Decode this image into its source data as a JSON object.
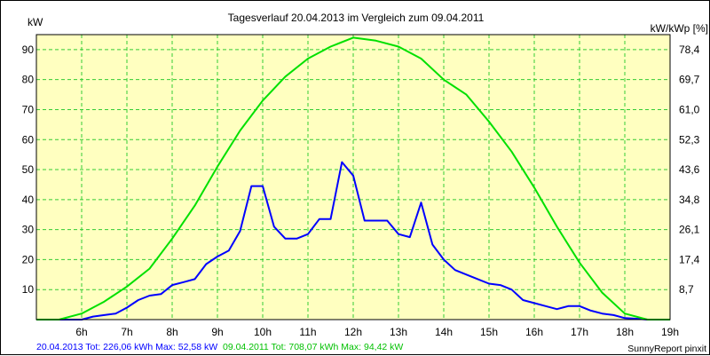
{
  "chart_data": {
    "type": "line",
    "title": "Tagesverlauf 20.04.2013 im Vergleich zum 09.04.2011",
    "ylabel_left": "kW",
    "ylabel_right": "kW/kWp [%]",
    "ylim": [
      0,
      95
    ],
    "xlim": [
      5,
      19
    ],
    "grid": true,
    "background_color": "#ffffc0",
    "grid_color": "#33cc33",
    "y_ticks_left": [
      "10",
      "20",
      "30",
      "40",
      "50",
      "60",
      "70",
      "80",
      "90"
    ],
    "y_ticks_right": [
      "8,7",
      "17,4",
      "26,1",
      "34,8",
      "43,6",
      "52,3",
      "61,0",
      "69,7",
      "78,4"
    ],
    "x_ticks": [
      "6h",
      "7h",
      "8h",
      "9h",
      "10h",
      "11h",
      "12h",
      "13h",
      "14h",
      "15h",
      "16h",
      "17h",
      "18h",
      "19h"
    ],
    "series": [
      {
        "name": "20.04.2013",
        "color": "#0000ff",
        "x": [
          5.0,
          6.0,
          6.25,
          6.5,
          6.75,
          7.0,
          7.25,
          7.5,
          7.75,
          8.0,
          8.25,
          8.5,
          8.75,
          9.0,
          9.25,
          9.5,
          9.75,
          10.0,
          10.25,
          10.5,
          10.75,
          11.0,
          11.25,
          11.5,
          11.75,
          12.0,
          12.25,
          12.5,
          12.75,
          13.0,
          13.25,
          13.5,
          13.75,
          14.0,
          14.25,
          14.5,
          14.75,
          15.0,
          15.25,
          15.5,
          15.75,
          16.0,
          16.25,
          16.5,
          16.75,
          17.0,
          17.25,
          17.5,
          17.75,
          18.0,
          18.25,
          18.5,
          19.0
        ],
        "values": [
          0,
          0,
          1,
          1.5,
          2,
          4,
          6.5,
          8,
          8.5,
          11.5,
          12.5,
          13.5,
          18.5,
          21,
          23,
          29.5,
          44.5,
          44.5,
          31,
          27,
          27,
          28.5,
          33.5,
          33.5,
          52.5,
          48,
          33,
          33,
          33,
          28.5,
          27.5,
          39,
          25,
          20,
          16.5,
          15,
          13.5,
          12,
          11.5,
          10,
          6.5,
          5.5,
          4.5,
          3.5,
          4.5,
          4.5,
          3,
          2,
          1.5,
          0.5,
          0.3,
          0,
          0
        ]
      },
      {
        "name": "09.04.2011",
        "color": "#00e000",
        "x": [
          5.0,
          5.5,
          6.0,
          6.5,
          7.0,
          7.5,
          8.0,
          8.5,
          9.0,
          9.5,
          10.0,
          10.5,
          11.0,
          11.5,
          12.0,
          12.5,
          13.0,
          13.5,
          14.0,
          14.5,
          15.0,
          15.5,
          16.0,
          16.5,
          17.0,
          17.5,
          18.0,
          18.5,
          19.0
        ],
        "values": [
          0,
          0,
          2,
          6,
          11,
          17,
          27,
          38,
          51,
          63,
          73,
          81,
          87,
          91,
          94,
          93,
          91,
          87,
          80,
          75,
          66,
          56,
          44,
          31,
          19,
          9,
          2,
          0,
          0
        ]
      }
    ]
  },
  "footer": {
    "series1_label": "20.04.2013",
    "series1_stats": "Tot: 226,06 kWh Max: 52,58 kW",
    "series2_label": "09.04.2011",
    "series2_stats": "Tot: 708,07 kWh Max: 94,42 kW",
    "credit": "SunnyReport pinxit"
  }
}
